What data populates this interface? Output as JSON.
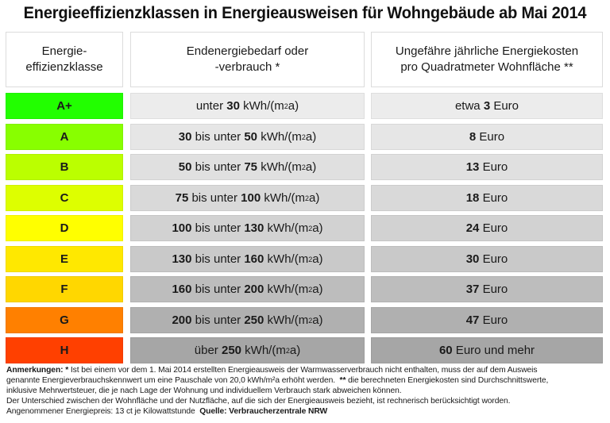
{
  "title": "Energieeffizienzklassen in Energieausweisen für Wohngebäude ab Mai 2014",
  "headers": {
    "col1": [
      "Energie-",
      "effizienzklasse"
    ],
    "col2": [
      "Endenergiebedarf oder",
      "-verbrauch *"
    ],
    "col3": [
      "Ungefähre jährliche Energiekosten",
      "pro Quadratmeter Wohnfläche **"
    ]
  },
  "rows": [
    {
      "cls": "A+",
      "color": "#22ff00",
      "gray": "#ececec",
      "range_pre": "unter ",
      "from": "",
      "mid": "",
      "to": "30",
      "unit": " kWh/(m",
      "unit_post": "a)",
      "cost_pre": "etwa ",
      "cost": "3",
      "cost_post": " Euro"
    },
    {
      "cls": "A",
      "color": "#88ff00",
      "gray": "#e6e6e6",
      "range_pre": "",
      "from": "30",
      "mid": " bis unter ",
      "to": "50",
      "unit": " kWh/(m",
      "unit_post": "a)",
      "cost_pre": "",
      "cost": "8",
      "cost_post": " Euro"
    },
    {
      "cls": "B",
      "color": "#bbff00",
      "gray": "#e0e0e0",
      "range_pre": "",
      "from": "50",
      "mid": " bis unter ",
      "to": "75",
      "unit": " kWh/(m",
      "unit_post": "a)",
      "cost_pre": "",
      "cost": "13",
      "cost_post": " Euro"
    },
    {
      "cls": "C",
      "color": "#ddff00",
      "gray": "#d9d9d9",
      "range_pre": "",
      "from": "75",
      "mid": " bis unter ",
      "to": "100",
      "unit": " kWh/(m",
      "unit_post": "a)",
      "cost_pre": "",
      "cost": "18",
      "cost_post": " Euro"
    },
    {
      "cls": "D",
      "color": "#ffff00",
      "gray": "#d2d2d2",
      "range_pre": "",
      "from": "100",
      "mid": " bis unter ",
      "to": "130",
      "unit": " kWh/(m",
      "unit_post": "a)",
      "cost_pre": "",
      "cost": "24",
      "cost_post": " Euro"
    },
    {
      "cls": "E",
      "color": "#ffe800",
      "gray": "#c9c9c9",
      "range_pre": "",
      "from": "130",
      "mid": " bis unter ",
      "to": "160",
      "unit": " kWh/(m",
      "unit_post": "a)",
      "cost_pre": "",
      "cost": "30",
      "cost_post": " Euro"
    },
    {
      "cls": "F",
      "color": "#ffd700",
      "gray": "#bdbdbd",
      "range_pre": "",
      "from": "160",
      "mid": " bis unter ",
      "to": "200",
      "unit": " kWh/(m",
      "unit_post": "a)",
      "cost_pre": "",
      "cost": "37",
      "cost_post": " Euro"
    },
    {
      "cls": "G",
      "color": "#ff8000",
      "gray": "#b0b0b0",
      "range_pre": "",
      "from": "200",
      "mid": " bis unter ",
      "to": "250",
      "unit": " kWh/(m",
      "unit_post": "a)",
      "cost_pre": "",
      "cost": "47",
      "cost_post": " Euro"
    },
    {
      "cls": "H",
      "color": "#ff4000",
      "gray": "#a6a6a6",
      "range_pre": "über ",
      "from": "",
      "mid": "",
      "to": "250",
      "unit": " kWh/(m",
      "unit_post": "a)",
      "cost_pre": "",
      "cost": "60",
      "cost_post": " Euro und mehr"
    }
  ],
  "notes": {
    "label": "Anmerkungen:",
    "star1": " * ",
    "line1": "Ist bei einem vor dem 1. Mai 2014 erstellten Energieausweis der Warmwasserverbrauch nicht enthalten, muss der auf dem Ausweis",
    "line2a": "genannte Energieverbrauchskennwert um eine Pauschale von 20,0 kWh/m²a erhöht werden.  ",
    "star2": "**",
    "line2b": " die berechneten Energiekosten sind Durchschnittswerte,",
    "line3": "inklusive Mehrwertsteuer, die je nach Lage der Wohnung und individuellem Verbrauch stark abweichen können.",
    "line4": "Der Unterschied zwischen der Wohnfläche und der Nutzfläche, auf die sich der Energieausweis bezieht, ist rechnerisch berücksichtigt worden.",
    "line5": "Angenommener Energiepreis: 13 ct je Kilowattstunde  ",
    "source": "Quelle: Verbraucherzentrale NRW"
  },
  "chart_data": {
    "type": "table",
    "title": "Energieeffizienzklassen in Energieausweisen für Wohngebäude ab Mai 2014",
    "columns": [
      "Energieeffizienzklasse",
      "Endenergiebedarf oder -verbrauch * (kWh/(m²a))",
      "Ungefähre jährliche Energiekosten pro Quadratmeter Wohnfläche ** (Euro)"
    ],
    "categories": [
      "A+",
      "A",
      "B",
      "C",
      "D",
      "E",
      "F",
      "G",
      "H"
    ],
    "ranges": [
      "unter 30",
      "30 bis unter 50",
      "50 bis unter 75",
      "75 bis unter 100",
      "100 bis unter 130",
      "130 bis unter 160",
      "160 bis unter 200",
      "200 bis unter 250",
      "über 250"
    ],
    "range_lower": [
      0,
      30,
      50,
      75,
      100,
      130,
      160,
      200,
      250
    ],
    "range_upper": [
      30,
      50,
      75,
      100,
      130,
      160,
      200,
      250,
      null
    ],
    "costs_euro": [
      3,
      8,
      13,
      18,
      24,
      30,
      37,
      47,
      60
    ],
    "cost_labels": [
      "etwa 3 Euro",
      "8 Euro",
      "13 Euro",
      "18 Euro",
      "24 Euro",
      "30 Euro",
      "37 Euro",
      "47 Euro",
      "60 Euro und mehr"
    ],
    "class_colors": [
      "#22ff00",
      "#88ff00",
      "#bbff00",
      "#ddff00",
      "#ffff00",
      "#ffe800",
      "#ffd700",
      "#ff8000",
      "#ff4000"
    ],
    "energy_price": "13 ct je Kilowattstunde",
    "source": "Verbraucherzentrale NRW"
  }
}
